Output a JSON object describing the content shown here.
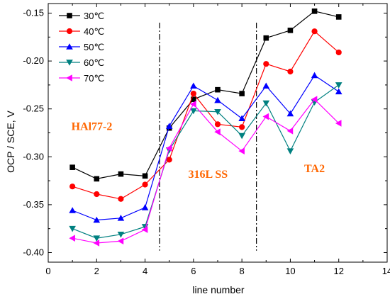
{
  "chart_data": {
    "type": "line",
    "xlabel": "line number",
    "ylabel": "OCP / SCE, V",
    "xlim": [
      0,
      14
    ],
    "ylim": [
      -0.41,
      -0.14
    ],
    "x_ticks": [
      0,
      2,
      4,
      6,
      8,
      10,
      12,
      14
    ],
    "y_ticks": [
      -0.4,
      -0.35,
      -0.3,
      -0.25,
      -0.2,
      -0.15
    ],
    "y_tick_labels": [
      "-0.40",
      "-0.35",
      "-0.30",
      "-0.25",
      "-0.20",
      "-0.15"
    ],
    "x": [
      1,
      2,
      3,
      4,
      5,
      6,
      7,
      8,
      9,
      10,
      11,
      12
    ],
    "series": [
      {
        "name": "30℃",
        "color": "#000000",
        "marker": "square",
        "values": [
          -0.311,
          -0.323,
          -0.318,
          -0.32,
          -0.27,
          -0.24,
          -0.23,
          -0.234,
          -0.176,
          -0.168,
          -0.148,
          -0.154
        ]
      },
      {
        "name": "40℃",
        "color": "#ff0000",
        "marker": "circle",
        "values": [
          -0.331,
          -0.339,
          -0.344,
          -0.329,
          -0.303,
          -0.234,
          -0.266,
          -0.269,
          -0.203,
          -0.211,
          -0.169,
          -0.191
        ]
      },
      {
        "name": "50℃",
        "color": "#0000ff",
        "marker": "triangle-up",
        "values": [
          -0.356,
          -0.366,
          -0.364,
          -0.353,
          -0.268,
          -0.226,
          -0.241,
          -0.26,
          -0.226,
          -0.255,
          -0.215,
          -0.232
        ]
      },
      {
        "name": "60℃",
        "color": "#008080",
        "marker": "triangle-down",
        "values": [
          -0.375,
          -0.385,
          -0.381,
          -0.373,
          -0.293,
          -0.252,
          -0.253,
          -0.278,
          -0.244,
          -0.294,
          -0.243,
          -0.225
        ]
      },
      {
        "name": "70℃",
        "color": "#ff00ff",
        "marker": "triangle-left",
        "values": [
          -0.385,
          -0.39,
          -0.388,
          -0.376,
          -0.291,
          -0.245,
          -0.274,
          -0.294,
          -0.258,
          -0.273,
          -0.24,
          -0.265
        ]
      }
    ],
    "dividers_x": [
      4.6,
      8.6
    ],
    "annotations": [
      {
        "text": "HAl77-2",
        "x": 1.8,
        "y": -0.272,
        "color": "#ff6600"
      },
      {
        "text": "316L SS",
        "x": 6.6,
        "y": -0.322,
        "color": "#ff6600"
      },
      {
        "text": "TA2",
        "x": 11.0,
        "y": -0.316,
        "color": "#ff6600"
      }
    ],
    "legend_position": "top-left",
    "grid": false
  }
}
